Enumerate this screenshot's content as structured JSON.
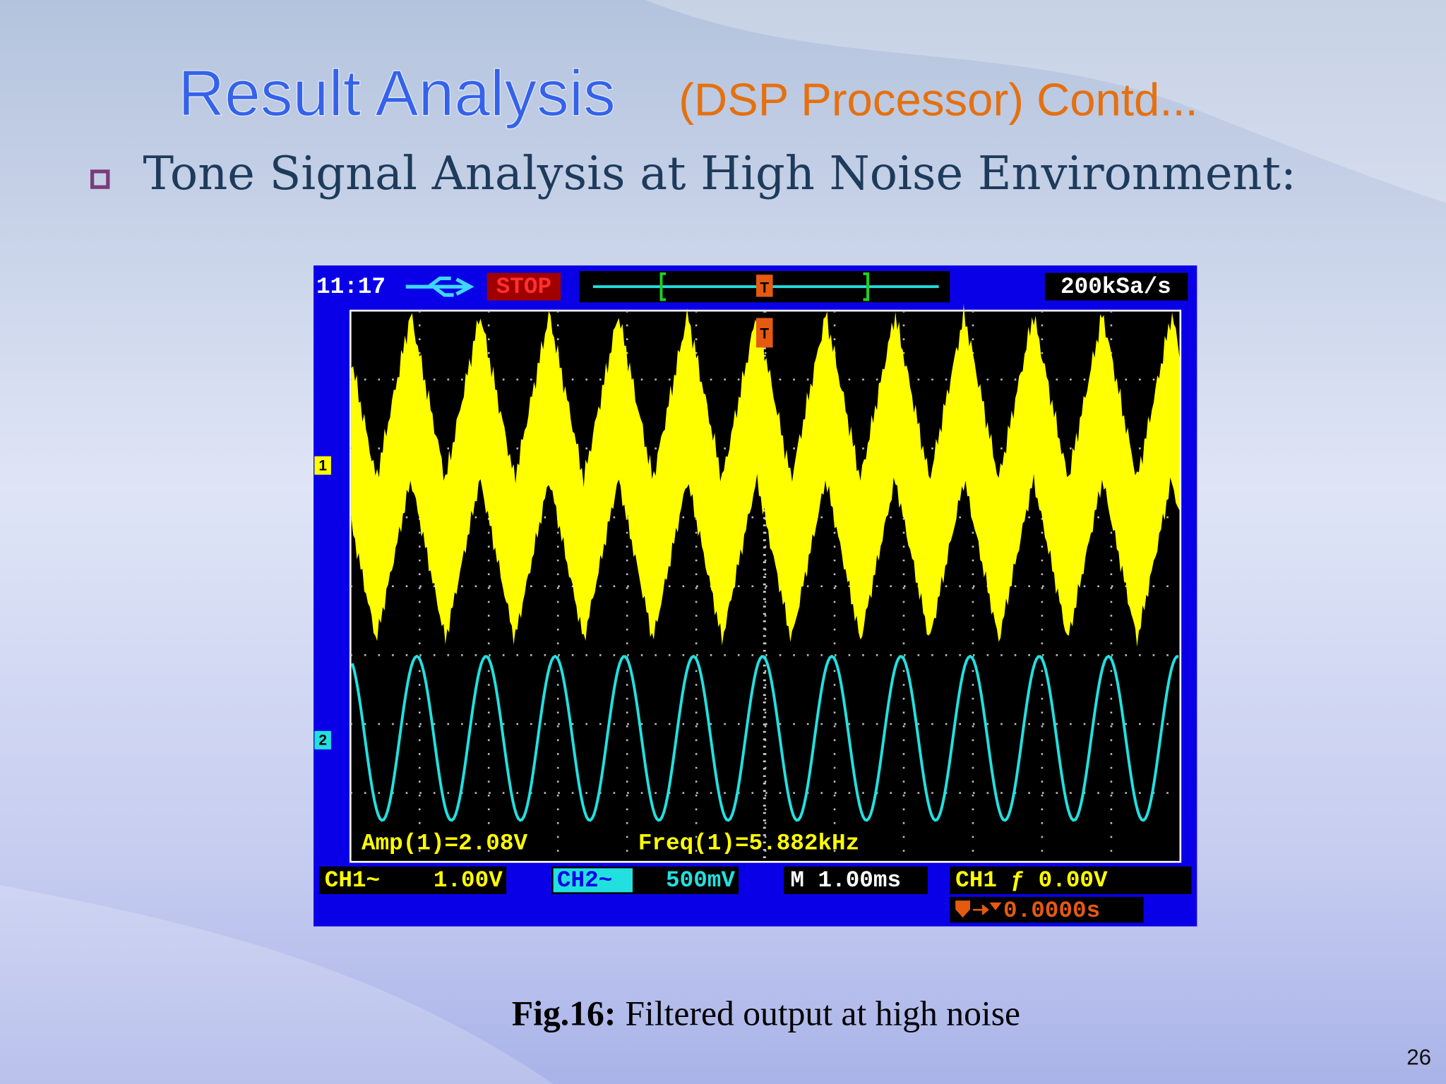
{
  "header": {
    "title": "Result Analysis",
    "subtitle": "(DSP Processor) Contd..."
  },
  "bullet": "Tone Signal Analysis at High Noise Environment:",
  "scope": {
    "time": "11:17",
    "status": "STOP",
    "sample_rate": "200kSa/s",
    "ch1_marker": "1",
    "ch2_marker": "2",
    "trigger_marker": "T",
    "measurements": [
      "Amp(1)=2.08V",
      "Freq(1)=5.882kHz"
    ],
    "ch1": {
      "label": "CH1~",
      "scale": "1.00V"
    },
    "ch2": {
      "label": "CH2~",
      "scale": "500mV"
    },
    "timebase": "M 1.00ms",
    "trigger": {
      "source": "CH1 ƒ 0.00V",
      "offset": "0.0000s"
    }
  },
  "caption": {
    "label": "Fig.16:",
    "text": "Filtered output at high noise"
  },
  "page_number": "26"
}
